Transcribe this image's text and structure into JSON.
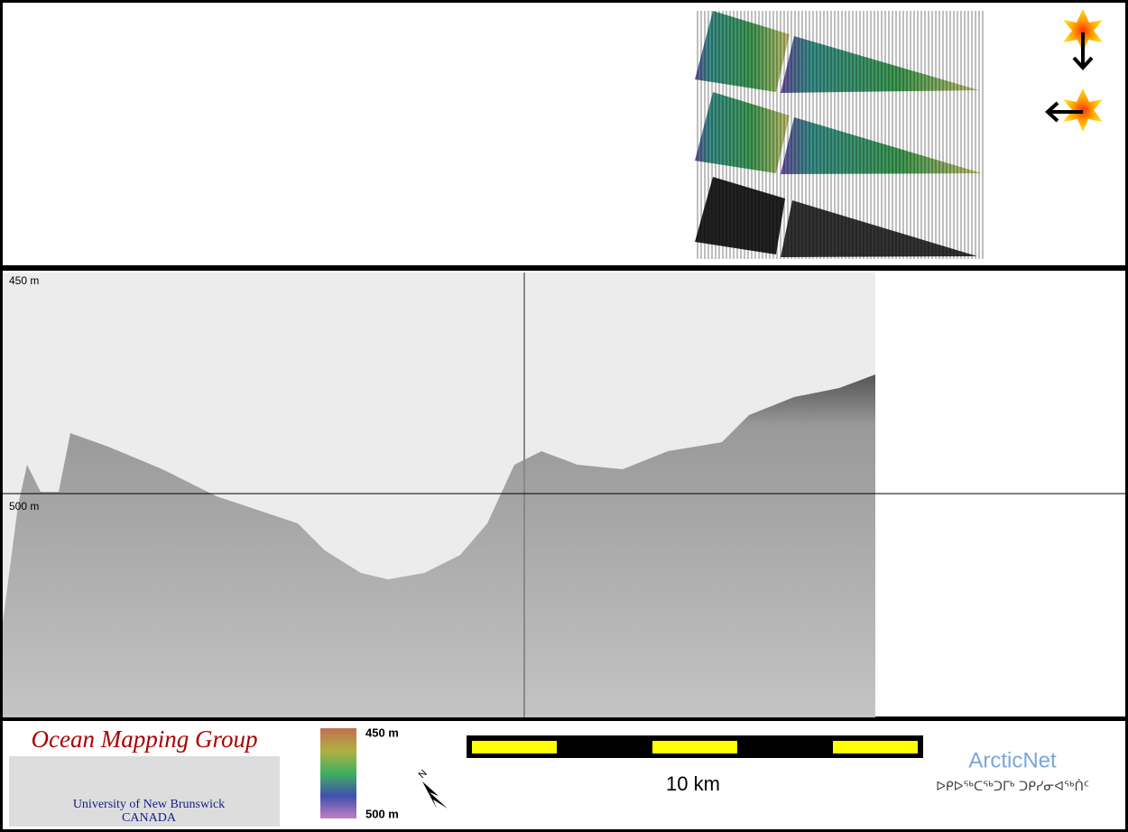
{
  "echogram": {
    "top_label": "450 m",
    "bottom_label": "500 m"
  },
  "footer": {
    "logo": {
      "title": "Ocean Mapping Group",
      "university": "University of New Brunswick",
      "country": "CANADA"
    },
    "colorbar": {
      "top": "450 m",
      "bottom": "500 m"
    },
    "north": "N",
    "scale": "10 km",
    "partner": {
      "name": "ArcticNet",
      "tagline": "ᐅᑭᐅᖅᑕᖅᑐᒥᒃ ᑐᑭᓯᓂᐊᖅᑏᑦ"
    }
  }
}
